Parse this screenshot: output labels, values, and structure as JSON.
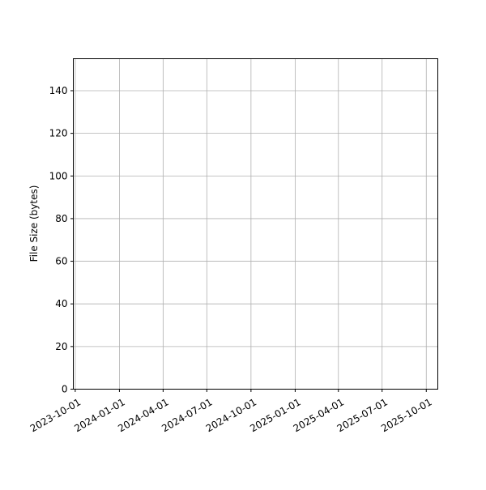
{
  "chart_data": {
    "type": "line",
    "title": "",
    "xlabel": "",
    "ylabel": "File Size (bytes)",
    "xlim": [
      "2023-09-27",
      "2025-10-25"
    ],
    "ylim": [
      0,
      155
    ],
    "x_ticks": [
      "2023-10-01",
      "2024-01-01",
      "2024-04-01",
      "2024-07-01",
      "2024-10-01",
      "2025-01-01",
      "2025-04-01",
      "2025-07-01",
      "2025-10-01"
    ],
    "y_ticks": [
      0,
      20,
      40,
      60,
      80,
      100,
      120,
      140
    ],
    "grid": true,
    "grid_color": "#b0b0b0",
    "series": []
  }
}
